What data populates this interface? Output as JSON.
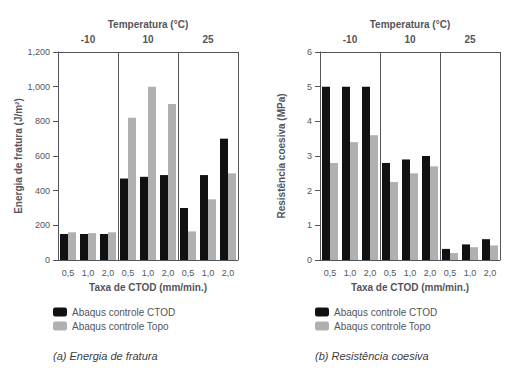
{
  "chart_data": [
    {
      "type": "bar",
      "subtitle": "(a) Energia de fratura",
      "x2_label": "Temperatura (°C)",
      "x2_categories": [
        "-10",
        "10",
        "25"
      ],
      "y_label": "Energia de fratura (J/m²)",
      "x_label": "Taxa de CTOD (mm/min.)",
      "categories": [
        "0,5",
        "1,0",
        "2,0",
        "0,5",
        "1,0",
        "2,0",
        "0,5",
        "1,0",
        "2,0"
      ],
      "series": [
        {
          "name": "Abaqus controle CTOD",
          "color": "#111111",
          "values": [
            150,
            150,
            150,
            470,
            480,
            490,
            300,
            490,
            700
          ]
        },
        {
          "name": "Abaqus controle Topo",
          "color": "#b0b0b0",
          "values": [
            160,
            155,
            160,
            820,
            1000,
            900,
            165,
            350,
            500
          ]
        }
      ],
      "ylim": [
        0,
        1200
      ],
      "yticks": [
        0,
        200,
        400,
        600,
        800,
        1000,
        1200
      ],
      "grid": false,
      "legend": "bottom"
    },
    {
      "type": "bar",
      "subtitle": "(b) Resistência coesiva",
      "x2_label": "Temperatura (°C)",
      "x2_categories": [
        "-10",
        "10",
        "25"
      ],
      "y_label": "Resistência coesiva (MPa)",
      "x_label": "Taxa de CTOD (mm/min.)",
      "categories": [
        "0,5",
        "1,0",
        "2,0",
        "0,5",
        "1,0",
        "2,0",
        "0,5",
        "1,0",
        "2,0"
      ],
      "series": [
        {
          "name": "Abaqus controle CTOD",
          "color": "#111111",
          "values": [
            5.0,
            5.0,
            5.0,
            2.8,
            2.9,
            3.0,
            0.32,
            0.45,
            0.6
          ]
        },
        {
          "name": "Abaqus controle Topo",
          "color": "#b0b0b0",
          "values": [
            2.8,
            3.4,
            3.6,
            2.25,
            2.5,
            2.7,
            0.2,
            0.37,
            0.42
          ]
        }
      ],
      "ylim": [
        0,
        6
      ],
      "yticks": [
        0,
        1,
        2,
        3,
        4,
        5,
        6
      ],
      "grid": false,
      "legend": "bottom"
    }
  ]
}
